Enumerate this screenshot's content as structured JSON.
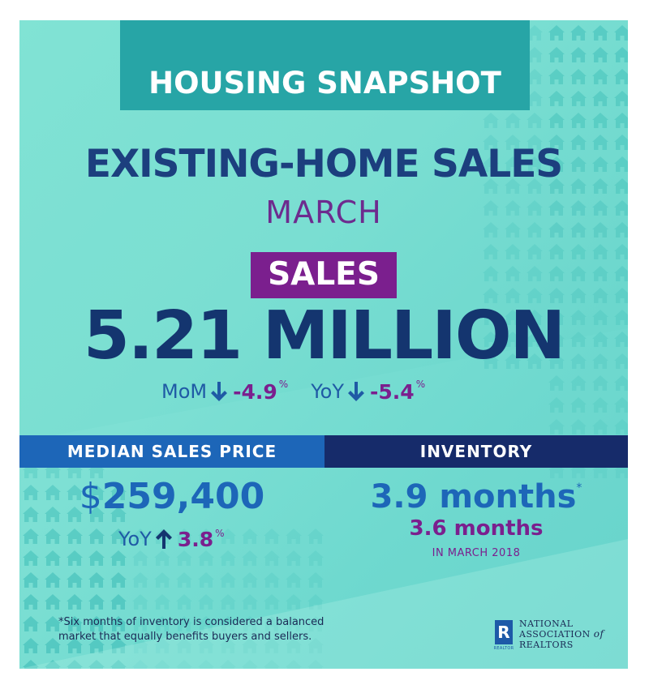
{
  "banner": {
    "title": "HOUSING SNAPSHOT"
  },
  "headline": {
    "title": "EXISTING-HOME SALES",
    "month": "MARCH"
  },
  "sales": {
    "label": "SALES",
    "value": "5.21 MILLION",
    "mom_label": "MoM",
    "mom_value": "-4.9",
    "yoy_label": "YoY",
    "yoy_value": "-5.4",
    "percent_sign": "%"
  },
  "median_price": {
    "header": "MEDIAN SALES PRICE",
    "currency": "$",
    "value": "259,400",
    "yoy_label": "YoY",
    "yoy_value": "3.8",
    "percent_sign": "%"
  },
  "inventory": {
    "header": "INVENTORY",
    "current": "3.9 months",
    "asterisk": "*",
    "previous": "3.6 months",
    "previous_note": "IN MARCH 2018"
  },
  "footnote": {
    "line1": "*Six months of inventory is considered a balanced",
    "line2": "market that equally benefits buyers and sellers."
  },
  "logo": {
    "mark": "R",
    "mark_caption": "REALTOR",
    "line1": "NATIONAL",
    "line2_a": "ASSOCIATION",
    "line2_b": "of",
    "line3": "REALTORS"
  },
  "colors": {
    "background": "#7ee0d4",
    "banner": "#27a5a6",
    "navy": "#14356f",
    "purple": "#7b1f8e",
    "blue": "#1d66b8",
    "dark_navy": "#162b6a"
  },
  "icons": [
    "house-pattern-icon",
    "arrow-down-icon",
    "arrow-up-icon",
    "realtor-r-icon"
  ]
}
